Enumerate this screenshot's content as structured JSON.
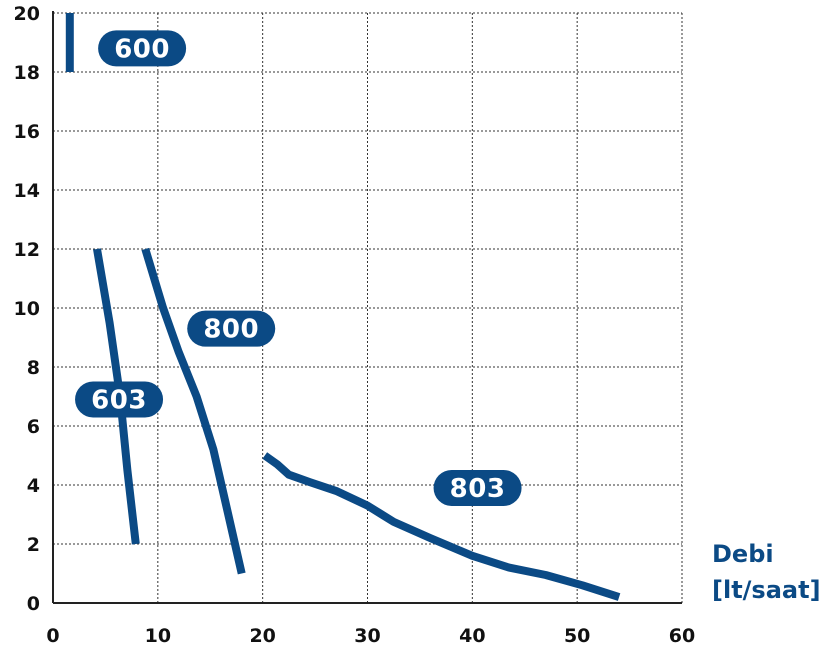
{
  "chart_data": {
    "type": "line",
    "xlabel": "Debi",
    "xunit": "[lt/saat]",
    "ylabel": "",
    "xlim": [
      0,
      60
    ],
    "ylim": [
      0,
      20
    ],
    "xticks": [
      0,
      10,
      20,
      30,
      40,
      50,
      60
    ],
    "yticks": [
      0,
      2,
      4,
      6,
      8,
      10,
      12,
      14,
      16,
      18,
      20
    ],
    "grid": true,
    "series": [
      {
        "name": "600",
        "label_pos": [
          8.5,
          18.8
        ],
        "points": [
          [
            1.6,
            20.0
          ],
          [
            1.6,
            18.0
          ]
        ]
      },
      {
        "name": "603",
        "label_pos": [
          6.3,
          6.9
        ],
        "points": [
          [
            4.2,
            12.0
          ],
          [
            5.4,
            9.5
          ],
          [
            6.4,
            7.0
          ],
          [
            7.1,
            4.5
          ],
          [
            7.9,
            2.0
          ]
        ]
      },
      {
        "name": "800",
        "label_pos": [
          17.0,
          9.3
        ],
        "points": [
          [
            8.8,
            12.0
          ],
          [
            10.5,
            10.0
          ],
          [
            12.0,
            8.5
          ],
          [
            13.7,
            7.0
          ],
          [
            15.3,
            5.2
          ],
          [
            16.4,
            3.5
          ],
          [
            18.0,
            1.0
          ]
        ]
      },
      {
        "name": "803",
        "label_pos": [
          40.5,
          3.9
        ],
        "points": [
          [
            20.2,
            5.0
          ],
          [
            21.4,
            4.7
          ],
          [
            22.5,
            4.35
          ],
          [
            24.5,
            4.1
          ],
          [
            27.0,
            3.8
          ],
          [
            30.0,
            3.3
          ],
          [
            32.5,
            2.75
          ],
          [
            36.0,
            2.2
          ],
          [
            40.0,
            1.6
          ],
          [
            43.5,
            1.2
          ],
          [
            47.0,
            0.95
          ],
          [
            50.5,
            0.6
          ],
          [
            54.0,
            0.2
          ]
        ]
      }
    ]
  }
}
